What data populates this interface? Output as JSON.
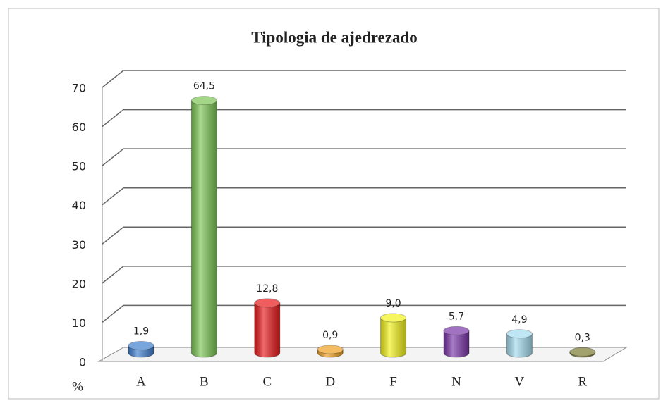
{
  "chart_data": {
    "type": "bar3d",
    "title": "Tipologia de ajedrezado",
    "y_label": "%",
    "categories": [
      "A",
      "B",
      "C",
      "D",
      "F",
      "N",
      "V",
      "R"
    ],
    "values": [
      1.9,
      64.5,
      12.8,
      0.9,
      9.0,
      5.7,
      4.9,
      0.3
    ],
    "value_labels": [
      "1,9",
      "64,5",
      "12,8",
      "0,9",
      "9,0",
      "5,7",
      "4,9",
      "0,3"
    ],
    "colors": [
      "#3f7fcf",
      "#7cc553",
      "#e8191b",
      "#f0a020",
      "#f2f21a",
      "#7a35a8",
      "#a4dcef",
      "#7a7a30"
    ],
    "ylim": [
      0,
      70
    ],
    "yticks": [
      0,
      10,
      20,
      30,
      40,
      50,
      60,
      70
    ],
    "grid": true
  }
}
